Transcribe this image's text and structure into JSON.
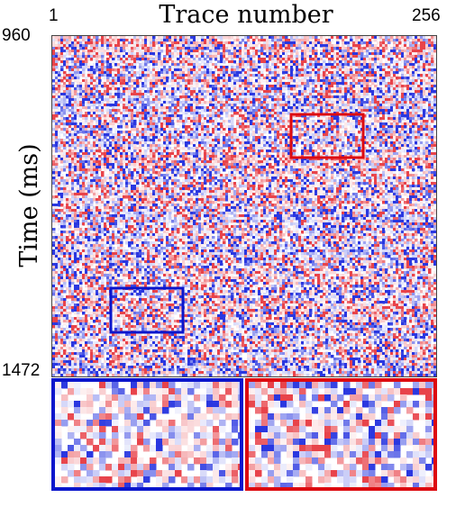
{
  "figure": {
    "title": "Trace number",
    "ylabel": "Time (ms)",
    "x_ticks": [
      "1",
      "256"
    ],
    "y_ticks": [
      "960",
      "1472"
    ]
  },
  "colormap": {
    "positive": "#e8434a",
    "negative": "#2a37e0",
    "zero": "#ffffff"
  },
  "highlights": [
    {
      "name": "red-region",
      "color": "#dd0b10"
    },
    {
      "name": "blue-region",
      "color": "#0b16cc"
    }
  ]
}
